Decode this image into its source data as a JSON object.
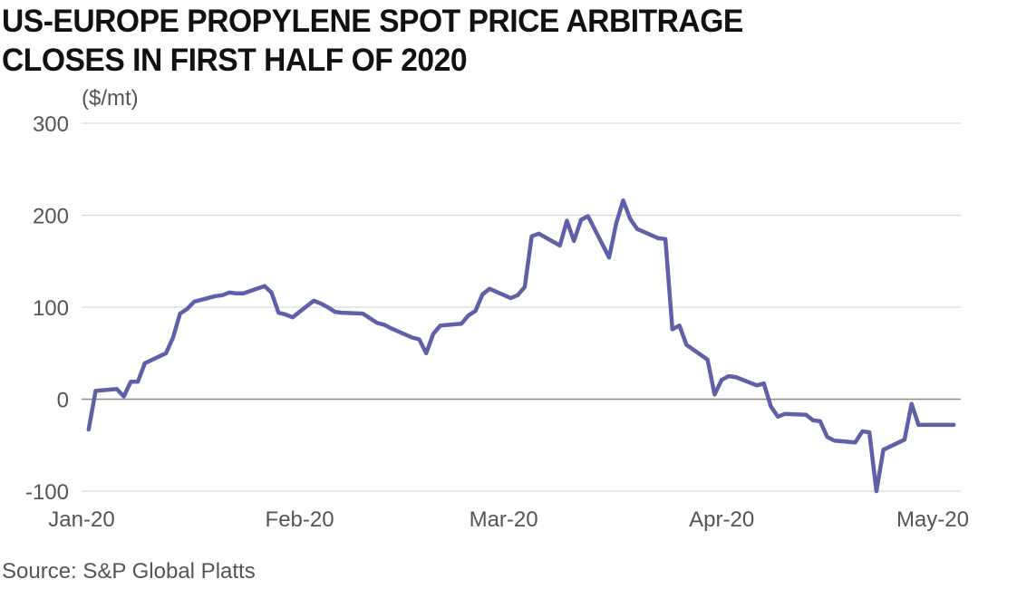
{
  "title_lines": [
    "US-EUROPE PROPYLENE SPOT PRICE ARBITRAGE",
    "CLOSES IN FIRST HALF OF 2020"
  ],
  "unit_label": "($/mt)",
  "source": "Source: S&P Global Platts",
  "colors": {
    "line": "#5f60a8",
    "grid": "#d9d9d9",
    "zero_line": "#8c8c8c",
    "text": "#555555"
  },
  "chart_data": {
    "type": "line",
    "title": "US-EUROPE PROPYLENE SPOT PRICE ARBITRAGE CLOSES IN FIRST HALF OF 2020",
    "ylabel": "($/mt)",
    "xlabel": "",
    "ylim": [
      -100,
      300
    ],
    "yticks": [
      -100,
      0,
      100,
      200,
      300
    ],
    "xlim": [
      "2020-01-01",
      "2020-05-05"
    ],
    "xticks": [
      {
        "label": "Jan-20",
        "date": "2020-01-01"
      },
      {
        "label": "Feb-20",
        "date": "2020-02-01"
      },
      {
        "label": "Mar-20",
        "date": "2020-03-01"
      },
      {
        "label": "Apr-20",
        "date": "2020-04-01"
      },
      {
        "label": "May-20",
        "date": "2020-05-01"
      }
    ],
    "grid": true,
    "legend": "none",
    "series": [
      {
        "x": [
          "2020-01-02",
          "2020-01-03",
          "2020-01-06",
          "2020-01-07",
          "2020-01-08",
          "2020-01-09",
          "2020-01-10",
          "2020-01-13",
          "2020-01-14",
          "2020-01-15",
          "2020-01-16",
          "2020-01-17",
          "2020-01-20",
          "2020-01-21",
          "2020-01-22",
          "2020-01-23",
          "2020-01-24",
          "2020-01-27",
          "2020-01-28",
          "2020-01-29",
          "2020-01-30",
          "2020-01-31",
          "2020-02-03",
          "2020-02-04",
          "2020-02-05",
          "2020-02-06",
          "2020-02-07",
          "2020-02-10",
          "2020-02-11",
          "2020-02-12",
          "2020-02-13",
          "2020-02-14",
          "2020-02-17",
          "2020-02-18",
          "2020-02-19",
          "2020-02-20",
          "2020-02-21",
          "2020-02-24",
          "2020-02-25",
          "2020-02-26",
          "2020-02-27",
          "2020-02-28",
          "2020-03-02",
          "2020-03-03",
          "2020-03-04",
          "2020-03-05",
          "2020-03-06",
          "2020-03-09",
          "2020-03-10",
          "2020-03-11",
          "2020-03-12",
          "2020-03-13",
          "2020-03-16",
          "2020-03-17",
          "2020-03-18",
          "2020-03-19",
          "2020-03-20",
          "2020-03-23",
          "2020-03-24",
          "2020-03-25",
          "2020-03-26",
          "2020-03-27",
          "2020-03-30",
          "2020-03-31",
          "2020-04-01",
          "2020-04-02",
          "2020-04-03",
          "2020-04-06",
          "2020-04-07",
          "2020-04-08",
          "2020-04-09",
          "2020-04-10",
          "2020-04-13",
          "2020-04-14",
          "2020-04-15",
          "2020-04-16",
          "2020-04-17",
          "2020-04-20",
          "2020-04-21",
          "2020-04-22",
          "2020-04-23",
          "2020-04-24",
          "2020-04-27",
          "2020-04-28",
          "2020-04-29",
          "2020-04-30",
          "2020-05-01",
          "2020-05-04"
        ],
        "y": [
          -33,
          9,
          11,
          3,
          19,
          19,
          39,
          50,
          67,
          93,
          98,
          106,
          112,
          113,
          116,
          115,
          115,
          123,
          116,
          94,
          92,
          89,
          107,
          104,
          100,
          95,
          94,
          93,
          88,
          83,
          81,
          77,
          67,
          65,
          50,
          71,
          80,
          82,
          91,
          96,
          114,
          120,
          110,
          113,
          122,
          177,
          180,
          167,
          194,
          172,
          195,
          199,
          154,
          191,
          216,
          196,
          185,
          175,
          174,
          76,
          80,
          59,
          43,
          5,
          21,
          25,
          24,
          15,
          17,
          -8,
          -19,
          -16,
          -17,
          -23,
          -24,
          -41,
          -45,
          -47,
          -35,
          -36,
          -100,
          -55,
          -44,
          -5,
          -28,
          -28,
          -28,
          -28
        ]
      }
    ]
  }
}
